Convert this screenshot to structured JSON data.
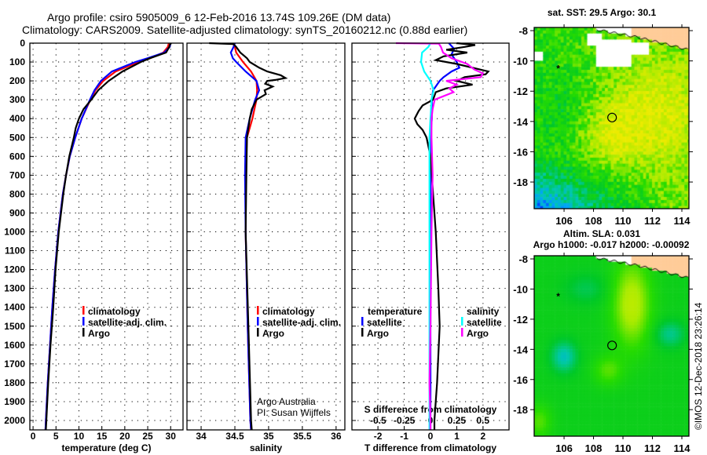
{
  "title": {
    "line1": "Argo profile: csiro 5905009_6 12-Feb-2016 13.74S 109.26E (DM data)",
    "line2": "Climatology: CARS2009. Satellite-adjusted climatology: synTS_20160212.nc (0.88d earlier)"
  },
  "colors": {
    "climatology": "#ff0000",
    "satellite": "#0000ff",
    "argo": "#000000",
    "sat_salinity": "#00ffff",
    "argo_salinity": "#ff00ff",
    "land": "#ffcc99"
  },
  "depth_ticks": [
    "0",
    "100",
    "200",
    "300",
    "400",
    "500",
    "600",
    "700",
    "800",
    "900",
    "1000",
    "1100",
    "1200",
    "1300",
    "1400",
    "1500",
    "1600",
    "1700",
    "1800",
    "1900",
    "2000"
  ],
  "legend_main": {
    "climatology": "climatology",
    "satellite": "satellite-adj. clim.",
    "argo": "Argo"
  },
  "legend_diff": {
    "temperature": "temperature",
    "salinity": "salinity",
    "satellite": "satellite",
    "argo": "Argo"
  },
  "credit": {
    "line1": "Argo Australia",
    "line2": "PI: Susan Wijffels"
  },
  "timestamp": "©IMOS 12-Dec-2018 23:26:14",
  "chart_data": [
    {
      "type": "line",
      "title": "",
      "xlabel": "temperature (deg C)",
      "ylabel": "depth",
      "xlim": [
        -0.7,
        32.7
      ],
      "ylim": [
        2050,
        0
      ],
      "xticks": [
        "0",
        "5",
        "10",
        "15",
        "20",
        "25",
        "30"
      ],
      "xtick_values": [
        0,
        5,
        10,
        15,
        20,
        25,
        30
      ],
      "series": [
        {
          "name": "climatology",
          "color": "#ff0000",
          "depth": [
            0,
            20,
            50,
            80,
            100,
            150,
            200,
            250,
            300,
            400,
            500,
            600,
            700,
            800,
            1000,
            1200,
            1400,
            1600,
            1800,
            2000,
            2050
          ],
          "values": [
            29.6,
            29.4,
            28.4,
            25.5,
            23.0,
            18.0,
            15.3,
            13.6,
            12.5,
            10.6,
            9.2,
            8.0,
            7.2,
            6.5,
            5.5,
            4.8,
            4.2,
            3.7,
            3.2,
            2.8,
            2.7
          ]
        },
        {
          "name": "satellite-adj. clim.",
          "color": "#0000ff",
          "depth": [
            0,
            20,
            50,
            80,
            100,
            150,
            200,
            250,
            300,
            400,
            500,
            600,
            700,
            800,
            1000,
            1200,
            1400,
            1600,
            1800,
            2000,
            2050
          ],
          "values": [
            30.0,
            29.8,
            28.6,
            25.0,
            22.3,
            17.2,
            14.8,
            13.4,
            12.4,
            10.6,
            9.2,
            8.0,
            7.2,
            6.5,
            5.5,
            4.8,
            4.2,
            3.7,
            3.2,
            2.8,
            2.7
          ]
        },
        {
          "name": "Argo",
          "color": "#000000",
          "depth": [
            0,
            10,
            20,
            50,
            80,
            100,
            150,
            200,
            250,
            300,
            350,
            400,
            450,
            500,
            600,
            700,
            800,
            1000,
            1200,
            1400,
            1600,
            1800,
            2000,
            2050
          ],
          "values": [
            30.1,
            29.8,
            29.7,
            29.0,
            25.5,
            23.5,
            19.5,
            16.5,
            14.2,
            12.7,
            11.0,
            10.0,
            9.3,
            8.9,
            7.9,
            7.2,
            6.6,
            5.6,
            4.9,
            4.4,
            3.8,
            3.3,
            2.9,
            2.8
          ]
        }
      ]
    },
    {
      "type": "line",
      "title": "",
      "xlabel": "salinity",
      "ylabel": "depth",
      "xlim": [
        33.79,
        36.13
      ],
      "ylim": [
        2050,
        0
      ],
      "xticks": [
        "34",
        "34.5",
        "35",
        "35.5",
        "36"
      ],
      "xtick_values": [
        34,
        34.5,
        35,
        35.5,
        36
      ],
      "series": [
        {
          "name": "climatology",
          "color": "#ff0000",
          "depth": [
            0,
            20,
            50,
            100,
            150,
            200,
            250,
            300,
            400,
            500,
            700,
            1000,
            1500,
            2000,
            2050
          ],
          "values": [
            34.47,
            34.5,
            34.52,
            34.62,
            34.74,
            34.82,
            34.83,
            34.82,
            34.76,
            34.68,
            34.66,
            34.66,
            34.69,
            34.73,
            34.74
          ]
        },
        {
          "name": "satellite-adj. clim.",
          "color": "#0000ff",
          "depth": [
            0,
            20,
            50,
            80,
            100,
            150,
            200,
            250,
            300,
            400,
            500,
            700,
            1000,
            1500,
            2000,
            2050
          ],
          "values": [
            34.5,
            34.48,
            34.44,
            34.47,
            34.52,
            34.66,
            34.82,
            34.86,
            34.8,
            34.72,
            34.66,
            34.65,
            34.66,
            34.69,
            34.73,
            34.74
          ]
        },
        {
          "name": "Argo",
          "color": "#000000",
          "depth": [
            0,
            5,
            20,
            50,
            80,
            100,
            130,
            150,
            170,
            185,
            195,
            200,
            215,
            230,
            250,
            270,
            300,
            350,
            400,
            500,
            700,
            1000,
            1500,
            2000,
            2050
          ],
          "values": [
            34.12,
            34.48,
            34.52,
            34.58,
            34.68,
            34.72,
            34.86,
            34.98,
            35.18,
            35.25,
            35.1,
            34.98,
            34.95,
            35.06,
            34.94,
            34.96,
            34.82,
            34.75,
            34.72,
            34.68,
            34.67,
            34.66,
            34.7,
            34.74,
            34.75
          ]
        }
      ]
    },
    {
      "type": "line",
      "title": "",
      "xlabel": "T difference from climatology",
      "x2label": "S difference from climatology",
      "ylabel": "depth",
      "xlim": [
        -2.99,
        2.99
      ],
      "x2lim": [
        -0.75,
        0.75
      ],
      "ylim": [
        2050,
        0
      ],
      "xticks": [
        "-2",
        "-1",
        "0",
        "1",
        "2"
      ],
      "xtick_values": [
        -2,
        -1,
        0,
        1,
        2
      ],
      "x2ticks": [
        "-0.5",
        "-0.25",
        "0",
        "0.25",
        "0.5"
      ],
      "x2tick_values": [
        -0.5,
        -0.25,
        0,
        0.25,
        0.5
      ],
      "series": [
        {
          "name": "temperature satellite",
          "axis": "T",
          "color": "#0000ff",
          "depth": [
            0,
            30,
            60,
            100,
            130,
            150,
            180,
            200,
            250,
            300,
            400,
            500,
            700,
            1000,
            1500,
            2000,
            2050
          ],
          "values": [
            0.7,
            0.9,
            0.8,
            1.0,
            1.1,
            0.8,
            0.5,
            0.35,
            0.1,
            0.05,
            0.05,
            0.0,
            0.0,
            0.0,
            0.0,
            0.0,
            0.0
          ]
        },
        {
          "name": "temperature Argo",
          "axis": "T",
          "color": "#000000",
          "depth": [
            0,
            10,
            20,
            35,
            50,
            70,
            90,
            110,
            130,
            150,
            165,
            180,
            200,
            220,
            240,
            260,
            300,
            330,
            360,
            400,
            430,
            460,
            500,
            600,
            800,
            1000,
            1300,
            1500,
            1800,
            2000,
            2050
          ],
          "values": [
            1.0,
            1.7,
            1.3,
            0.6,
            1.4,
            0.5,
            0.2,
            1.0,
            1.6,
            2.2,
            2.1,
            1.3,
            1.0,
            1.6,
            0.6,
            0.2,
            0.1,
            -0.3,
            -0.45,
            -0.6,
            -0.5,
            -0.3,
            -0.15,
            0.0,
            0.1,
            0.2,
            0.3,
            0.35,
            0.25,
            0.15,
            0.15
          ]
        },
        {
          "name": "salinity satellite",
          "axis": "S",
          "color": "#00ffff",
          "depth": [
            0,
            20,
            50,
            100,
            150,
            200,
            250,
            300,
            400,
            500,
            700,
            1000,
            1500,
            2000,
            2050
          ],
          "values": [
            0.0,
            -0.02,
            -0.08,
            -0.09,
            -0.06,
            0.0,
            0.03,
            0.01,
            0.0,
            -0.01,
            -0.01,
            -0.01,
            -0.01,
            -0.01,
            -0.01
          ]
        },
        {
          "name": "salinity Argo",
          "axis": "S",
          "color": "#ff00ff",
          "depth": [
            0,
            3,
            20,
            50,
            80,
            110,
            140,
            160,
            180,
            200,
            220,
            240,
            260,
            300,
            350,
            400,
            500,
            700,
            1000,
            1500,
            1800,
            2000,
            2050
          ],
          "values": [
            -0.33,
            0.08,
            0.1,
            0.12,
            0.2,
            0.35,
            0.42,
            0.5,
            0.48,
            0.15,
            0.25,
            0.18,
            0.22,
            0.04,
            0.02,
            0.01,
            0.01,
            0.02,
            0.01,
            0.0,
            -0.01,
            0.0,
            0.0
          ]
        }
      ]
    }
  ],
  "maps": [
    {
      "title": "sat. SST: 29.5 Argo: 30.1",
      "field": "sst",
      "lat_ticks": [
        "-8",
        "-10",
        "-12",
        "-14",
        "-16",
        "-18"
      ],
      "lon_ticks": [
        "106",
        "108",
        "110",
        "112",
        "114"
      ],
      "profile_lon": 109.26,
      "profile_lat": -13.74
    },
    {
      "title": "Altim. SLA: 0.031",
      "subtitle": "Argo h1000: -0.017 h2000: -0.00092",
      "field": "sla",
      "lat_ticks": [
        "-8",
        "-10",
        "-12",
        "-14",
        "-16",
        "-18"
      ],
      "lon_ticks": [
        "106",
        "108",
        "110",
        "112",
        "114"
      ],
      "profile_lon": 109.26,
      "profile_lat": -13.74
    }
  ]
}
